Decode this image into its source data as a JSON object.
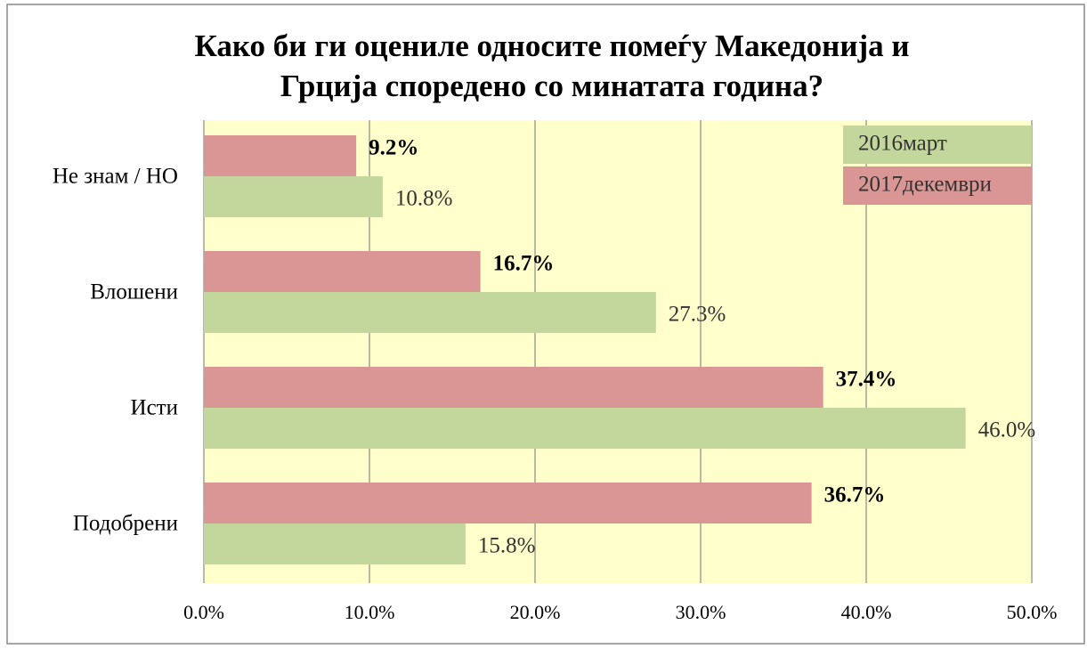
{
  "chart_data": {
    "type": "bar",
    "orientation": "horizontal",
    "title": [
      "Како би ги оцениле односите помеѓу Македонија и",
      "Грција споредено со минатата година?"
    ],
    "categories": [
      "Не знам / НО",
      "Влошени",
      "Исти",
      "Подобрени"
    ],
    "series": [
      {
        "name": "2016март",
        "color": "#c3d69b",
        "values": [
          10.8,
          27.3,
          46.0,
          15.8
        ],
        "value_labels": [
          "10.8%",
          "27.3%",
          "46.0%",
          "15.8%"
        ]
      },
      {
        "name": "2017декември",
        "color": "#d99694",
        "values": [
          9.2,
          16.7,
          37.4,
          36.7
        ],
        "value_labels": [
          "9.2%",
          "16.7%",
          "37.4%",
          "36.7%"
        ]
      }
    ],
    "xlim": [
      0,
      50
    ],
    "xticks": [
      {
        "value": 0,
        "label": "0.0%"
      },
      {
        "value": 10,
        "label": "10.0%"
      },
      {
        "value": 20,
        "label": "20.0%"
      },
      {
        "value": 30,
        "label": "30.0%"
      },
      {
        "value": 40,
        "label": "40.0%"
      },
      {
        "value": 50,
        "label": "50.0%"
      }
    ],
    "grid": true,
    "legend": "top-right",
    "plot_background": "#ffffcc"
  }
}
